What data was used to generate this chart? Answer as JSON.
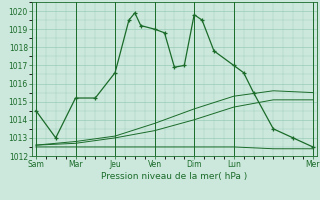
{
  "background_color": "#cce8dc",
  "grid_color": "#99ccb8",
  "line_color": "#1a6b2a",
  "x_tick_labels": [
    "Sam",
    "Mar",
    "Jeu",
    "Ven",
    "Dim",
    "Lun",
    "Mer"
  ],
  "x_tick_positions": [
    0,
    2,
    4,
    6,
    8,
    10,
    14
  ],
  "xlabel": "Pression niveau de la mer( hPa )",
  "ylim": [
    1012,
    1020.5
  ],
  "yticks": [
    1012,
    1013,
    1014,
    1015,
    1016,
    1017,
    1018,
    1019,
    1020
  ],
  "xlim": [
    -0.2,
    14.2
  ],
  "series1_x": [
    0,
    1,
    2,
    3,
    4,
    4.7,
    5,
    5.3,
    6,
    6.5,
    7,
    7.5,
    8,
    8.4,
    9,
    10,
    10.5,
    11,
    12,
    13,
    14
  ],
  "series1_y": [
    1014.5,
    1013.0,
    1015.2,
    1015.2,
    1016.6,
    1019.5,
    1019.9,
    1019.2,
    1019.0,
    1018.8,
    1016.9,
    1017.0,
    1019.8,
    1019.5,
    1017.8,
    1017.0,
    1016.6,
    1015.5,
    1013.5,
    1013.0,
    1012.5
  ],
  "series2_x": [
    0,
    2,
    4,
    6,
    8,
    10,
    12,
    14
  ],
  "series2_y": [
    1012.6,
    1012.8,
    1013.1,
    1013.8,
    1014.6,
    1015.3,
    1015.6,
    1015.5
  ],
  "series3_x": [
    0,
    2,
    4,
    6,
    8,
    10,
    12,
    14
  ],
  "series3_y": [
    1012.6,
    1012.7,
    1013.0,
    1013.4,
    1014.0,
    1014.7,
    1015.1,
    1015.1
  ],
  "series4_x": [
    0,
    2,
    4,
    6,
    8,
    10,
    12,
    14
  ],
  "series4_y": [
    1012.5,
    1012.5,
    1012.5,
    1012.5,
    1012.5,
    1012.5,
    1012.4,
    1012.4
  ]
}
